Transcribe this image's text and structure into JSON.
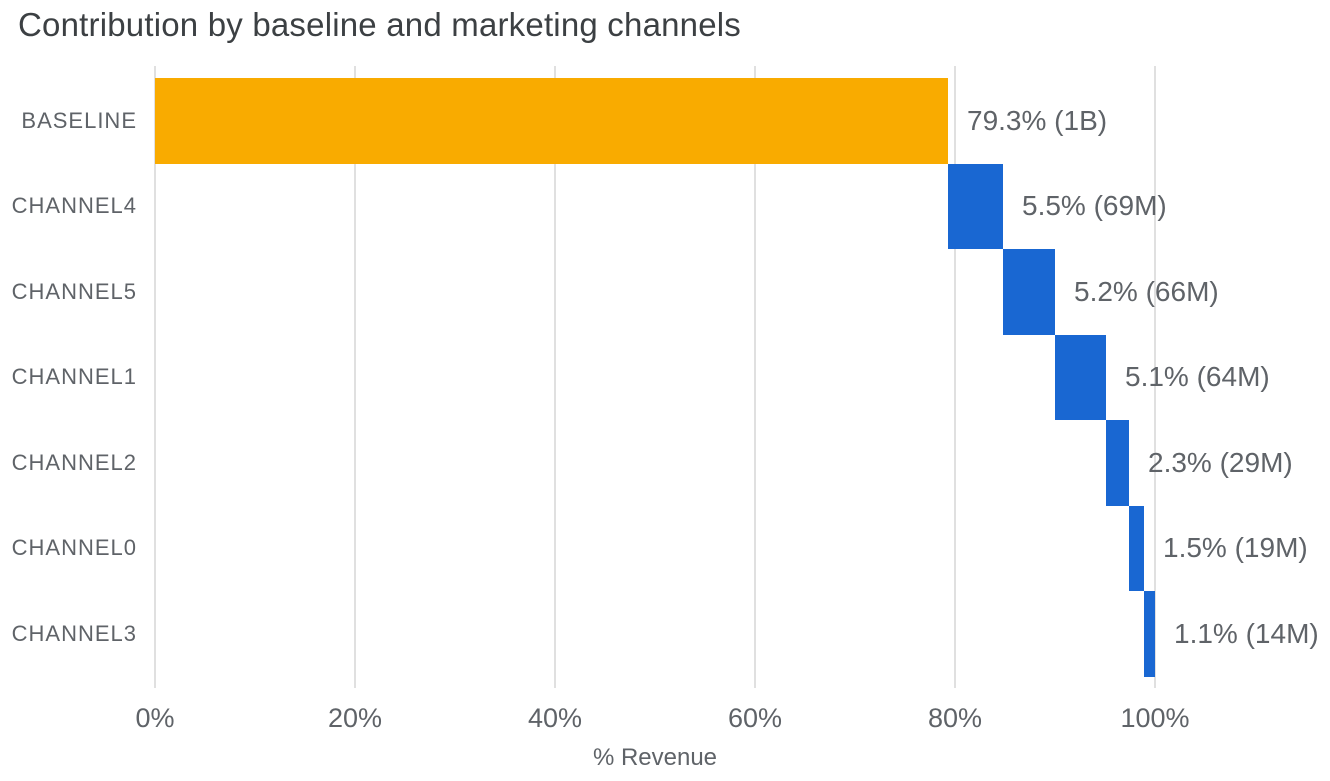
{
  "title": "Contribution by baseline and marketing channels",
  "palette": {
    "baseline_bar": "#F9AB00",
    "channel_bar": "#1967D2",
    "gridline": "#E0E0E0",
    "title_text": "#3C4043",
    "label_text": "#5F6368"
  },
  "chart_data": {
    "type": "bar",
    "subtype": "horizontal-waterfall",
    "title": "Contribution by baseline and marketing channels",
    "xlabel": "% Revenue",
    "ylabel": "",
    "xlim": [
      0,
      117.5
    ],
    "grid": "vertical-only",
    "legend": "none",
    "x_ticks": [
      {
        "value": 0,
        "label": "0%"
      },
      {
        "value": 20,
        "label": "20%"
      },
      {
        "value": 40,
        "label": "40%"
      },
      {
        "value": 60,
        "label": "60%"
      },
      {
        "value": 80,
        "label": "80%"
      },
      {
        "value": 100,
        "label": "100%"
      }
    ],
    "categories": [
      "BASELINE",
      "CHANNEL4",
      "CHANNEL5",
      "CHANNEL1",
      "CHANNEL2",
      "CHANNEL0",
      "CHANNEL3"
    ],
    "rows": [
      {
        "category": "BASELINE",
        "percent": 79.3,
        "revenue": "1B",
        "label": "79.3% (1B)",
        "color": "#F9AB00"
      },
      {
        "category": "CHANNEL4",
        "percent": 5.5,
        "revenue": "69M",
        "label": "5.5% (69M)",
        "color": "#1967D2"
      },
      {
        "category": "CHANNEL5",
        "percent": 5.2,
        "revenue": "66M",
        "label": "5.2% (66M)",
        "color": "#1967D2"
      },
      {
        "category": "CHANNEL1",
        "percent": 5.1,
        "revenue": "64M",
        "label": "5.1% (64M)",
        "color": "#1967D2"
      },
      {
        "category": "CHANNEL2",
        "percent": 2.3,
        "revenue": "29M",
        "label": "2.3% (29M)",
        "color": "#1967D2"
      },
      {
        "category": "CHANNEL0",
        "percent": 1.5,
        "revenue": "19M",
        "label": "1.5% (19M)",
        "color": "#1967D2"
      },
      {
        "category": "CHANNEL3",
        "percent": 1.1,
        "revenue": "14M",
        "label": "1.1% (14M)",
        "color": "#1967D2"
      }
    ]
  }
}
